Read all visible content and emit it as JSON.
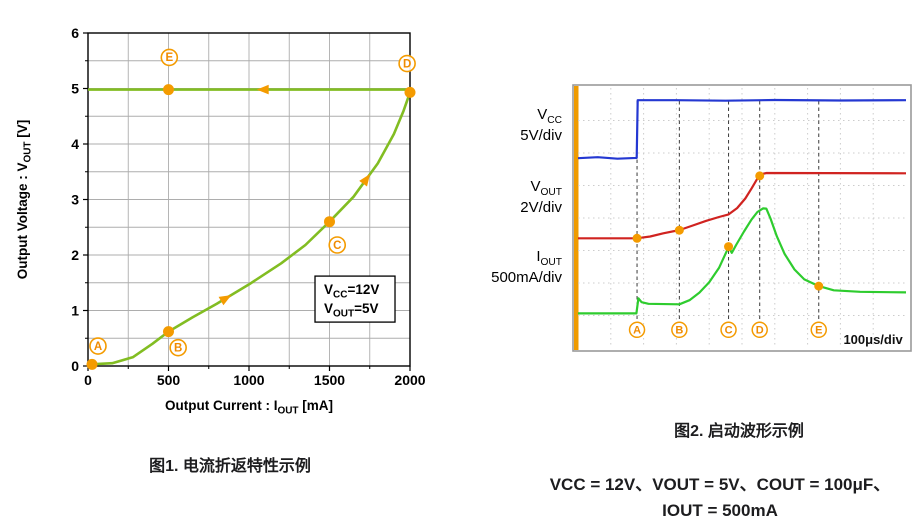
{
  "figure1": {
    "caption": "图1. 电流折返特性示例"
  },
  "figure2": {
    "caption": "图2. 启动波形示例",
    "params_line1": "VCC = 12V、VOUT = 5V、COUT = 100μF、",
    "params_line2": "IOUT = 500mA"
  },
  "chart_data": [
    {
      "type": "line",
      "title": "Current foldback characteristic example",
      "xlabel_main": "Output Current : I",
      "xlabel_sub": "OUT",
      "xlabel_unit": " [mA]",
      "ylabel_main": "Output Voltage : V",
      "ylabel_sub": "OUT",
      "ylabel_unit": " [V]",
      "xlim": [
        0,
        2000
      ],
      "ylim": [
        0,
        6
      ],
      "xticks": [
        0,
        500,
        1000,
        1500,
        2000
      ],
      "yticks": [
        0,
        1,
        2,
        3,
        4,
        5,
        6
      ],
      "x_minor_step": 250,
      "y_minor_step": 0.5,
      "grid": true,
      "curve_color": "#82bd22",
      "marker_color": "#f49b00",
      "rising_curve": [
        [
          20,
          0.03
        ],
        [
          150,
          0.05
        ],
        [
          280,
          0.16
        ],
        [
          400,
          0.4
        ],
        [
          500,
          0.62
        ],
        [
          650,
          0.88
        ],
        [
          800,
          1.12
        ],
        [
          1000,
          1.47
        ],
        [
          1200,
          1.85
        ],
        [
          1350,
          2.18
        ],
        [
          1500,
          2.6
        ],
        [
          1650,
          3.05
        ],
        [
          1800,
          3.65
        ],
        [
          1900,
          4.18
        ],
        [
          1960,
          4.6
        ],
        [
          2000,
          4.93
        ]
      ],
      "top_line": [
        [
          2000,
          4.98
        ],
        [
          0,
          4.98
        ]
      ],
      "points": [
        {
          "label": "A",
          "x": 25,
          "y": 0.03,
          "label_x": 62,
          "label_y": 0.36
        },
        {
          "label": "B",
          "x": 500,
          "y": 0.62,
          "label_x": 560,
          "label_y": 0.33
        },
        {
          "label": "C",
          "x": 1500,
          "y": 2.6,
          "label_x": 1548,
          "label_y": 2.18
        },
        {
          "label": "D",
          "x": 2000,
          "y": 4.93,
          "label_x": 1982,
          "label_y": 5.45
        },
        {
          "label": "E",
          "x": 500,
          "y": 4.98,
          "label_x": 505,
          "label_y": 5.56
        }
      ],
      "arrows": [
        {
          "x": 880,
          "y": 1.26,
          "angle_deg": -30
        },
        {
          "x": 1745,
          "y": 3.43,
          "angle_deg": -54
        },
        {
          "x": 1060,
          "y": 4.98,
          "angle_deg": 180
        }
      ],
      "annotation": {
        "x": 1410,
        "y": 1.62,
        "lines": [
          {
            "main": "V",
            "sub": "CC",
            "rest": "=12V"
          },
          {
            "main": "V",
            "sub": "OUT",
            "rest": "=5V"
          }
        ]
      }
    },
    {
      "type": "line",
      "title": "Startup waveform example",
      "time_per_div": "100μs/div",
      "grid_cols": 10,
      "grid_rows": 8,
      "marker_color": "#f49b00",
      "traces": [
        {
          "name": "VCC",
          "label_main": "V",
          "label_sub": "CC",
          "label_scale": "5V/div",
          "color": "#2438d2",
          "points_pct": [
            [
              0,
              27
            ],
            [
              6,
              26.6
            ],
            [
              12,
              27.2
            ],
            [
              17.9,
              26.9
            ],
            [
              18.2,
              4.7
            ],
            [
              30,
              4.7
            ],
            [
              45,
              4.9
            ],
            [
              60,
              4.6
            ],
            [
              80,
              4.8
            ],
            [
              100,
              4.7
            ]
          ]
        },
        {
          "name": "VOUT",
          "label_main": "V",
          "label_sub": "OUT",
          "label_scale": "2V/div",
          "color": "#d02320",
          "points_pct": [
            [
              0,
              57.8
            ],
            [
              17.9,
              57.8
            ],
            [
              22,
              57.1
            ],
            [
              26,
              55.9
            ],
            [
              31,
              54.6
            ],
            [
              35,
              52.9
            ],
            [
              39,
              51.1
            ],
            [
              43,
              49.6
            ],
            [
              45.9,
              48.6
            ],
            [
              48.5,
              46.2
            ],
            [
              51,
              42.5
            ],
            [
              53,
              38.5
            ],
            [
              54.8,
              34.6
            ],
            [
              55.9,
              33.1
            ],
            [
              57.5,
              32.7
            ],
            [
              100,
              32.8
            ]
          ]
        },
        {
          "name": "IOUT",
          "label_main": "I",
          "label_sub": "OUT",
          "label_scale": "500mA/div",
          "color": "#2ecc2e",
          "points_pct": [
            [
              0,
              86.7
            ],
            [
              17.8,
              86.7
            ],
            [
              18.4,
              80.9
            ],
            [
              19.4,
              82.4
            ],
            [
              21.5,
              83
            ],
            [
              30.9,
              83.2
            ],
            [
              34,
              81.6
            ],
            [
              37,
              78.7
            ],
            [
              40,
              74.7
            ],
            [
              43,
              69.2
            ],
            [
              45.9,
              61.2
            ],
            [
              46.9,
              63.4
            ],
            [
              48.3,
              60.2
            ],
            [
              50.6,
              55.2
            ],
            [
              52.9,
              50.6
            ],
            [
              54.7,
              47.7
            ],
            [
              56.4,
              46.3
            ],
            [
              57.4,
              46.4
            ],
            [
              58.7,
              50.2
            ],
            [
              60.6,
              57
            ],
            [
              63,
              63.8
            ],
            [
              66,
              69.8
            ],
            [
              69,
              73.6
            ],
            [
              73.4,
              76.2
            ],
            [
              78,
              77.8
            ],
            [
              86,
              78.4
            ],
            [
              100,
              78.6
            ]
          ]
        }
      ],
      "markers": [
        {
          "label": "A",
          "x_pct": 18,
          "dots": [
            {
              "trace": "VOUT",
              "y_pct": 57.8
            }
          ]
        },
        {
          "label": "B",
          "x_pct": 30.9,
          "dots": [
            {
              "trace": "VOUT",
              "y_pct": 54.7
            }
          ]
        },
        {
          "label": "C",
          "x_pct": 45.9,
          "dots": [
            {
              "trace": "IOUT",
              "y_pct": 61
            }
          ]
        },
        {
          "label": "D",
          "x_pct": 55.4,
          "dots": [
            {
              "trace": "VOUT",
              "y_pct": 33.8
            }
          ]
        },
        {
          "label": "E",
          "x_pct": 73.4,
          "dots": [
            {
              "trace": "IOUT",
              "y_pct": 76.2
            }
          ]
        }
      ]
    }
  ]
}
